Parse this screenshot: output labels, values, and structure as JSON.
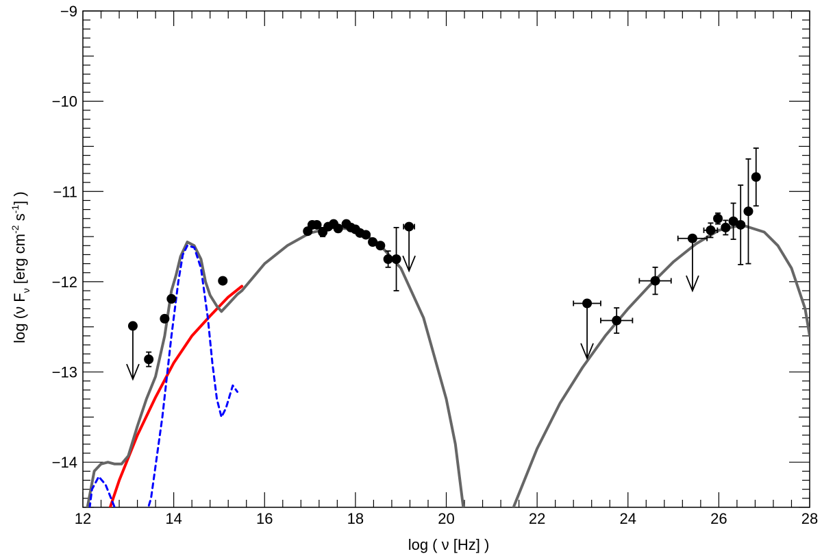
{
  "chart_data": {
    "type": "scatter",
    "title": "",
    "xlabel": "log ( ν [Hz] )",
    "ylabel": {
      "prefix": "log (ν F",
      "sub": "ν",
      "mid1": " [erg cm",
      "sup1": "-2",
      "mid2": " s",
      "sup2": "-1",
      "suffix": "] )"
    },
    "xlim": [
      12,
      28
    ],
    "ylim": [
      -14.5,
      -9
    ],
    "x_ticks": [
      12,
      14,
      16,
      18,
      20,
      22,
      24,
      26,
      28
    ],
    "x_tick_labels": [
      "12",
      "14",
      "16",
      "18",
      "20",
      "22",
      "24",
      "26",
      "28"
    ],
    "y_ticks": [
      -14,
      -13,
      -12,
      -11,
      -10,
      -9
    ],
    "y_tick_labels": [
      "−14",
      "−13",
      "−12",
      "−11",
      "−10",
      "−9"
    ],
    "colors": {
      "total_model": "#666666",
      "synchrotron": "#ff0000",
      "host_galaxy": "#0000ff",
      "data": "#000000"
    },
    "series": [
      {
        "name": "total-model",
        "kind": "line",
        "points": [
          [
            12.0,
            -15.2
          ],
          [
            12.1,
            -14.5
          ],
          [
            12.25,
            -14.1
          ],
          [
            12.4,
            -14.02
          ],
          [
            12.55,
            -14.0
          ],
          [
            12.7,
            -14.02
          ],
          [
            12.85,
            -14.02
          ],
          [
            13.0,
            -13.93
          ],
          [
            13.2,
            -13.6
          ],
          [
            13.4,
            -13.3
          ],
          [
            13.6,
            -13.05
          ],
          [
            13.8,
            -12.6
          ],
          [
            13.95,
            -12.1
          ],
          [
            14.05,
            -11.93
          ],
          [
            14.15,
            -11.72
          ],
          [
            14.3,
            -11.56
          ],
          [
            14.45,
            -11.6
          ],
          [
            14.6,
            -11.75
          ],
          [
            14.7,
            -12.0
          ],
          [
            14.8,
            -12.15
          ],
          [
            14.95,
            -12.27
          ],
          [
            15.05,
            -12.33
          ],
          [
            15.2,
            -12.25
          ],
          [
            15.4,
            -12.14
          ],
          [
            15.5,
            -12.1
          ],
          [
            16.0,
            -11.8
          ],
          [
            16.5,
            -11.6
          ],
          [
            17.0,
            -11.46
          ],
          [
            17.5,
            -11.4
          ],
          [
            18.0,
            -11.42
          ],
          [
            18.5,
            -11.57
          ],
          [
            19.0,
            -11.85
          ],
          [
            19.5,
            -12.4
          ],
          [
            20.0,
            -13.3
          ],
          [
            20.2,
            -13.8
          ],
          [
            20.4,
            -14.6
          ]
        ]
      },
      {
        "name": "inverse-compton-model",
        "kind": "line",
        "points": [
          [
            21.4,
            -14.6
          ],
          [
            22.0,
            -13.85
          ],
          [
            22.5,
            -13.35
          ],
          [
            23.0,
            -12.95
          ],
          [
            23.5,
            -12.6
          ],
          [
            24.0,
            -12.3
          ],
          [
            24.5,
            -12.03
          ],
          [
            25.0,
            -11.78
          ],
          [
            25.5,
            -11.58
          ],
          [
            26.0,
            -11.43
          ],
          [
            26.5,
            -11.37
          ],
          [
            27.0,
            -11.45
          ],
          [
            27.3,
            -11.6
          ],
          [
            27.6,
            -11.85
          ],
          [
            27.9,
            -12.3
          ],
          [
            28.0,
            -12.6
          ]
        ]
      },
      {
        "name": "synchrotron",
        "kind": "line",
        "points": [
          [
            12.5,
            -14.65
          ],
          [
            12.8,
            -14.2
          ],
          [
            13.2,
            -13.7
          ],
          [
            13.6,
            -13.28
          ],
          [
            14.0,
            -12.9
          ],
          [
            14.4,
            -12.6
          ],
          [
            14.8,
            -12.38
          ],
          [
            15.2,
            -12.17
          ],
          [
            15.5,
            -12.05
          ]
        ]
      },
      {
        "name": "host-galaxy",
        "kind": "dashed",
        "points": [
          [
            12.05,
            -14.9
          ],
          [
            12.2,
            -14.3
          ],
          [
            12.35,
            -14.16
          ],
          [
            12.5,
            -14.25
          ],
          [
            12.7,
            -14.5
          ],
          [
            12.9,
            -14.75
          ],
          [
            13.2,
            -14.9
          ],
          [
            13.5,
            -14.4
          ],
          [
            13.75,
            -13.5
          ],
          [
            13.95,
            -12.6
          ],
          [
            14.1,
            -12.0
          ],
          [
            14.2,
            -11.7
          ],
          [
            14.3,
            -11.6
          ],
          [
            14.45,
            -11.62
          ],
          [
            14.6,
            -11.85
          ],
          [
            14.75,
            -12.4
          ],
          [
            14.85,
            -12.9
          ],
          [
            14.95,
            -13.3
          ],
          [
            15.05,
            -13.5
          ],
          [
            15.15,
            -13.4
          ],
          [
            15.3,
            -13.15
          ],
          [
            15.4,
            -13.22
          ]
        ]
      }
    ],
    "data_points": [
      {
        "x": 13.45,
        "y": -12.86,
        "yerr": 0.08
      },
      {
        "x": 13.8,
        "y": -12.41
      },
      {
        "x": 13.95,
        "y": -12.19
      },
      {
        "x": 15.08,
        "y": -11.99
      },
      {
        "x": 16.95,
        "y": -11.44
      },
      {
        "x": 17.05,
        "y": -11.37,
        "xerr": 0.06
      },
      {
        "x": 17.15,
        "y": -11.37
      },
      {
        "x": 17.28,
        "y": -11.45,
        "yerr": 0.05
      },
      {
        "x": 17.4,
        "y": -11.39
      },
      {
        "x": 17.52,
        "y": -11.36
      },
      {
        "x": 17.62,
        "y": -11.41,
        "yerr": 0.04
      },
      {
        "x": 17.8,
        "y": -11.36,
        "xerr": 0.06
      },
      {
        "x": 17.9,
        "y": -11.4
      },
      {
        "x": 18.0,
        "y": -11.42
      },
      {
        "x": 18.1,
        "y": -11.46
      },
      {
        "x": 18.23,
        "y": -11.48
      },
      {
        "x": 18.38,
        "y": -11.56
      },
      {
        "x": 18.55,
        "y": -11.6
      },
      {
        "x": 18.72,
        "y": -11.75,
        "yerr": 0.09
      },
      {
        "x": 18.9,
        "y": -11.75,
        "yerr": 0.35
      },
      {
        "x": 23.75,
        "y": -12.43,
        "xerr": 0.35,
        "yerr": 0.14
      },
      {
        "x": 24.6,
        "y": -11.99,
        "xerr": 0.35,
        "yerr": 0.15
      },
      {
        "x": 25.82,
        "y": -11.43,
        "xerr": 0.15,
        "yerr": 0.08
      },
      {
        "x": 25.98,
        "y": -11.3,
        "xerr": 0.08,
        "yerr": 0.06
      },
      {
        "x": 26.15,
        "y": -11.4,
        "xerr": 0.08,
        "yerr": 0.08
      },
      {
        "x": 26.32,
        "y": -11.33,
        "xerr": 0.08,
        "yerr": 0.2
      },
      {
        "x": 26.48,
        "y": -11.37,
        "xerr": 0.08,
        "yerr": 0.44
      },
      {
        "x": 26.65,
        "y": -11.22,
        "xerr": 0.05,
        "yerr": 0.58
      },
      {
        "x": 26.82,
        "y": -10.84,
        "xerr": 0.05,
        "yerr": 0.32
      }
    ],
    "upper_limits": [
      {
        "x": 13.1,
        "y": -12.49,
        "to": -13.08
      },
      {
        "x": 19.18,
        "y": -11.39,
        "xerr": 0.12,
        "to": -11.88
      },
      {
        "x": 23.1,
        "y": -12.24,
        "xerr": 0.3,
        "to": -12.85
      },
      {
        "x": 25.42,
        "y": -11.52,
        "xerr": 0.32,
        "to": -12.1
      }
    ]
  }
}
